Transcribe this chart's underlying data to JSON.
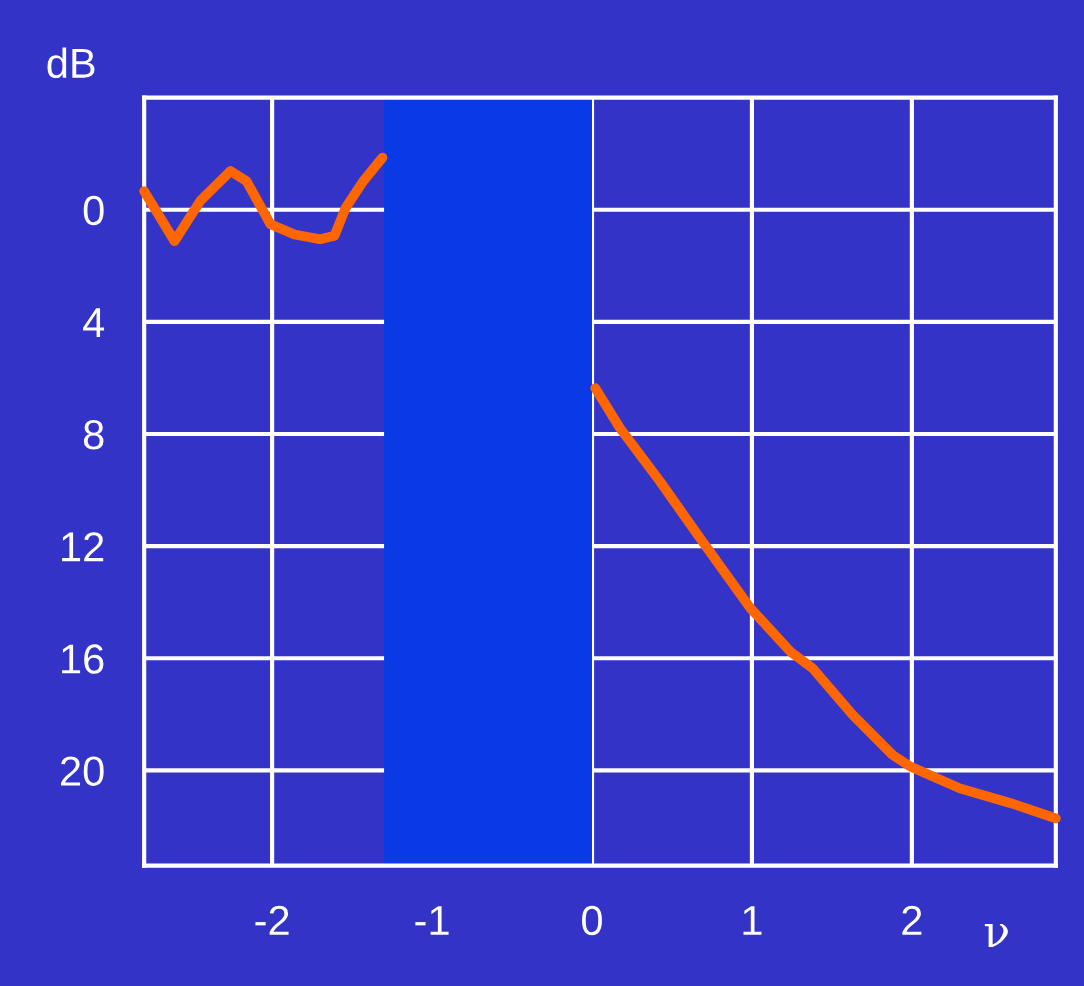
{
  "chart_data": {
    "type": "line",
    "xlabel": "ν",
    "ylabel": "dB",
    "xlim": [
      -2.8,
      2.9
    ],
    "ylim": [
      23.4,
      -4
    ],
    "xticks": [
      -2,
      -1,
      0,
      1,
      2
    ],
    "yticks": [
      0,
      4,
      8,
      12,
      16,
      20
    ],
    "grid": true,
    "marker": "none",
    "line_style": "solid",
    "bands": [
      {
        "axis": "x",
        "from": -1.3,
        "to": 0,
        "color": "#0a3ae6"
      }
    ],
    "series": [
      {
        "color": "#ff6600",
        "x": [
          -2.8,
          -2.61,
          -2.45,
          -2.26,
          -2.16,
          -2.01,
          -1.86,
          -1.7,
          -1.61,
          -1.54,
          -1.43,
          -1.31,
          -0.6,
          0.02,
          0.175,
          0.425,
          0.675,
          0.99,
          1.24,
          1.38,
          1.63,
          1.88,
          1.99,
          2.3,
          2.63,
          2.9
        ],
        "values": [
          -0.66,
          1.12,
          -0.31,
          -1.38,
          -1.02,
          0.52,
          0.88,
          1.05,
          0.93,
          -0.07,
          -1.02,
          -1.86,
          null,
          6.36,
          7.79,
          9.69,
          11.71,
          14.21,
          15.76,
          16.36,
          18.02,
          19.45,
          19.86,
          20.64,
          21.19,
          21.71
        ]
      }
    ]
  }
}
